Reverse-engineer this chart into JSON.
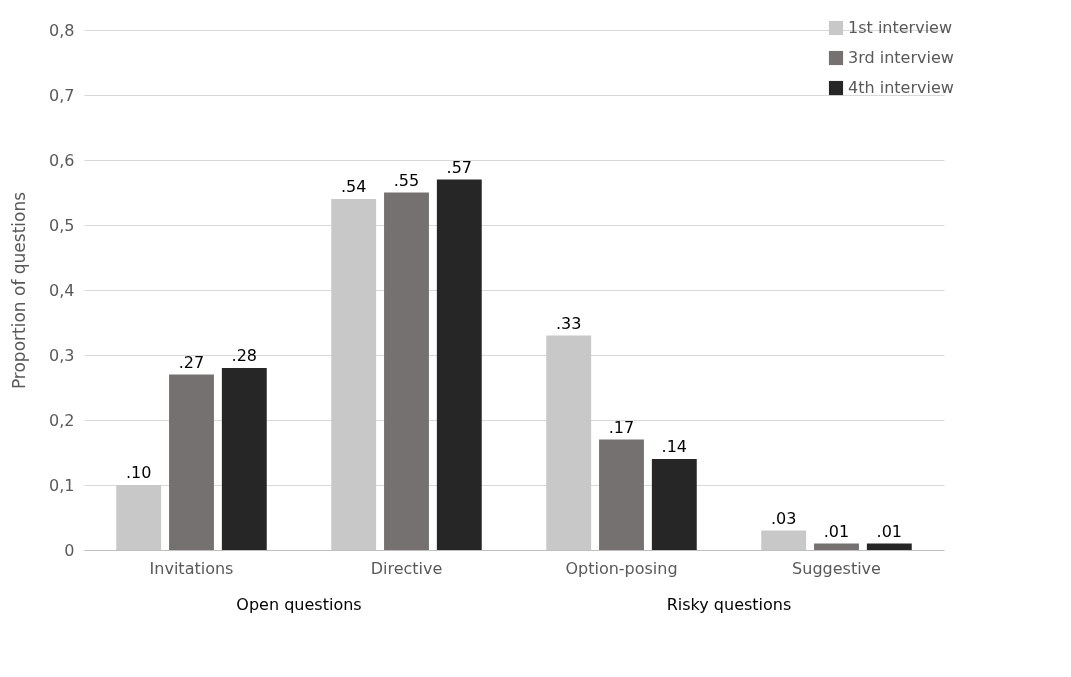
{
  "chart_data": {
    "type": "bar",
    "ylabel": "Proportion of questions",
    "categories": [
      "Invitations",
      "Directive",
      "Option-posing",
      "Suggestive"
    ],
    "series": [
      {
        "name": "1st interview",
        "color": "#c8c8c8",
        "values": [
          0.1,
          0.54,
          0.33,
          0.03
        ],
        "value_labels": [
          ".10",
          ".54",
          ".33",
          ".03"
        ]
      },
      {
        "name": "3rd interview",
        "color": "#767171",
        "values": [
          0.27,
          0.55,
          0.17,
          0.01
        ],
        "value_labels": [
          ".27",
          ".55",
          ".17",
          ".01"
        ]
      },
      {
        "name": "4th interview",
        "color": "#262626",
        "values": [
          0.28,
          0.57,
          0.14,
          0.01
        ],
        "value_labels": [
          ".28",
          ".57",
          ".14",
          ".01"
        ]
      }
    ],
    "ylim": [
      0,
      0.8
    ],
    "yticks": [
      0,
      {
        "value": 0.1,
        "label": "0,1"
      },
      {
        "value": 0.2,
        "label": "0,2"
      },
      {
        "value": 0.3,
        "label": "0,3"
      },
      {
        "value": 0.4,
        "label": "0,4"
      },
      {
        "value": 0.5,
        "label": "0,5"
      },
      {
        "value": 0.6,
        "label": "0,6"
      },
      {
        "value": 0.7,
        "label": "0,7"
      },
      {
        "value": 0.8,
        "label": "0,8"
      }
    ],
    "grid": "y",
    "legend": "top right",
    "annotations": [
      "Open questions",
      "Risky questions"
    ]
  }
}
